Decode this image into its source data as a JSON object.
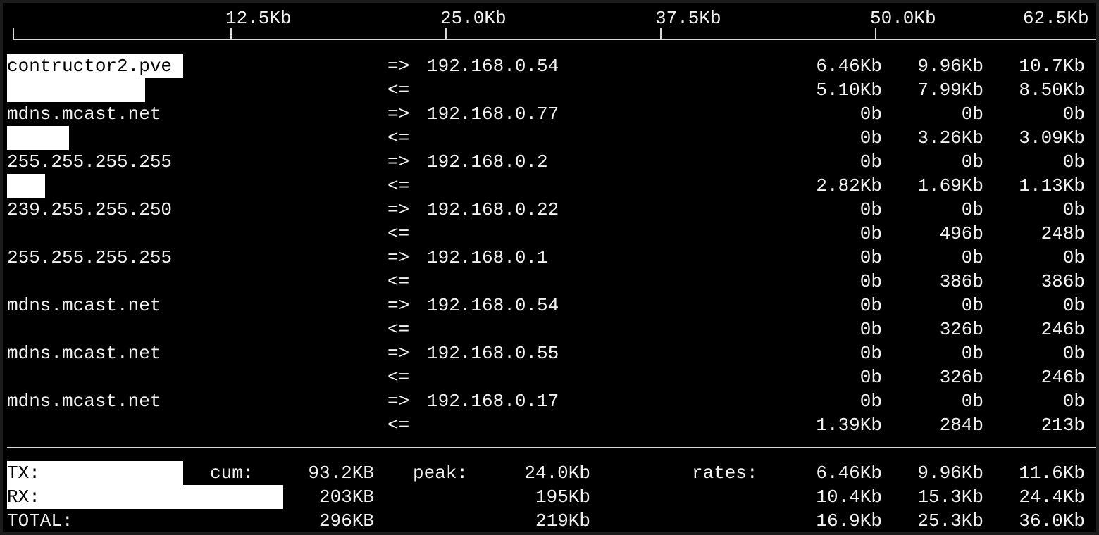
{
  "scale": {
    "labels": [
      "12.5Kb",
      "25.0Kb",
      "37.5Kb",
      "50.0Kb",
      "62.5Kb"
    ],
    "max_kb": 62.5
  },
  "flows": [
    {
      "host": "contructor2.pve",
      "peer": "192.168.0.54",
      "tx": [
        "6.46Kb",
        "9.96Kb",
        "10.7Kb"
      ],
      "rx": [
        "5.10Kb",
        "7.99Kb",
        "8.50Kb"
      ],
      "tx_bar_kb": 10.2,
      "rx_bar_kb": 8.0
    },
    {
      "host": "mdns.mcast.net",
      "peer": "192.168.0.77",
      "tx": [
        "0b",
        "0b",
        "0b"
      ],
      "rx": [
        "0b",
        "3.26Kb",
        "3.09Kb"
      ],
      "tx_bar_kb": 0,
      "rx_bar_kb": 3.6
    },
    {
      "host": "255.255.255.255",
      "peer": "192.168.0.2",
      "tx": [
        "0b",
        "0b",
        "0b"
      ],
      "rx": [
        "2.82Kb",
        "1.69Kb",
        "1.13Kb"
      ],
      "tx_bar_kb": 0,
      "rx_bar_kb": 2.2
    },
    {
      "host": "239.255.255.250",
      "peer": "192.168.0.22",
      "tx": [
        "0b",
        "0b",
        "0b"
      ],
      "rx": [
        "0b",
        "496b",
        "248b"
      ],
      "tx_bar_kb": 0,
      "rx_bar_kb": 0
    },
    {
      "host": "255.255.255.255",
      "peer": "192.168.0.1",
      "tx": [
        "0b",
        "0b",
        "0b"
      ],
      "rx": [
        "0b",
        "386b",
        "386b"
      ],
      "tx_bar_kb": 0,
      "rx_bar_kb": 0
    },
    {
      "host": "mdns.mcast.net",
      "peer": "192.168.0.54",
      "tx": [
        "0b",
        "0b",
        "0b"
      ],
      "rx": [
        "0b",
        "326b",
        "246b"
      ],
      "tx_bar_kb": 0,
      "rx_bar_kb": 0
    },
    {
      "host": "mdns.mcast.net",
      "peer": "192.168.0.55",
      "tx": [
        "0b",
        "0b",
        "0b"
      ],
      "rx": [
        "0b",
        "326b",
        "246b"
      ],
      "tx_bar_kb": 0,
      "rx_bar_kb": 0
    },
    {
      "host": "mdns.mcast.net",
      "peer": "192.168.0.17",
      "tx": [
        "0b",
        "0b",
        "0b"
      ],
      "rx": [
        "1.39Kb",
        "284b",
        "213b"
      ],
      "tx_bar_kb": 0,
      "rx_bar_kb": 0
    }
  ],
  "arrows": {
    "tx": "=>",
    "rx": "<="
  },
  "footer": {
    "cum_label": "cum:",
    "peak_label": "peak:",
    "rates_label": "rates:",
    "rows": [
      {
        "label": "TX:",
        "cum": "93.2KB",
        "peak": "24.0Kb",
        "rates": [
          "6.46Kb",
          "9.96Kb",
          "11.6Kb"
        ],
        "bar_kb": 10.2
      },
      {
        "label": "RX:",
        "cum": "203KB",
        "peak": "195Kb",
        "rates": [
          "10.4Kb",
          "15.3Kb",
          "24.4Kb"
        ],
        "bar_kb": 16.0
      },
      {
        "label": "TOTAL:",
        "cum": "296KB",
        "peak": "219Kb",
        "rates": [
          "16.9Kb",
          "25.3Kb",
          "36.0Kb"
        ],
        "bar_kb": 0
      }
    ]
  }
}
